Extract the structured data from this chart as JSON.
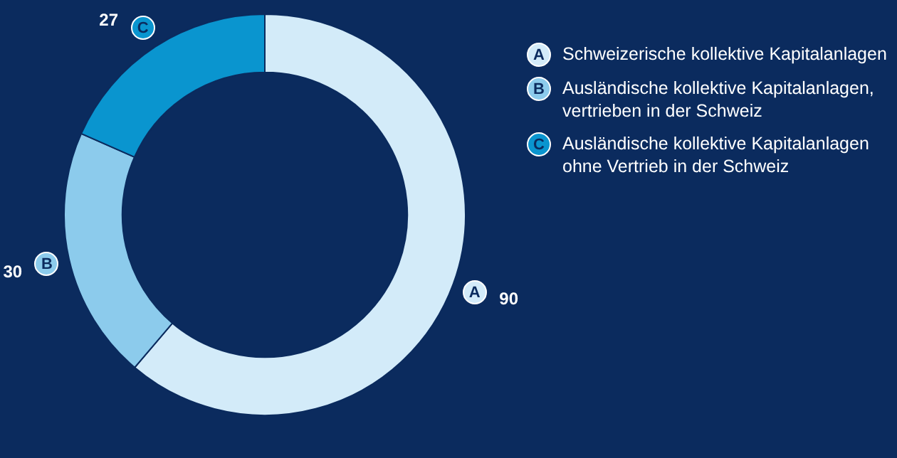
{
  "chart_data": {
    "type": "donut",
    "categories": [
      "Schweizerische kollektive Kapitalanlagen",
      "Ausländische kollektive Kapitalanlagen, vertrieben in der Schweiz",
      "Ausländische kollektive Kapitalanlagen ohne Vertrieb in der Schweiz"
    ],
    "values": [
      90,
      30,
      27
    ],
    "colors": [
      "#d3ebf9",
      "#8ccbec",
      "#0a95cf"
    ],
    "annotations": [
      "A",
      "B",
      "C"
    ],
    "data_labels": true,
    "legend": "top right"
  }
}
